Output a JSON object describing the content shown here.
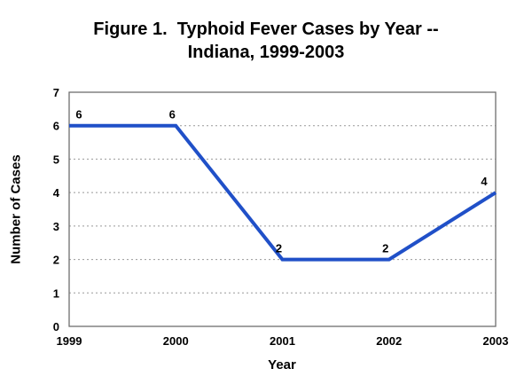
{
  "title": {
    "line1": "Figure 1.  Typhoid Fever Cases by Year --",
    "line2": "Indiana, 1999-2003"
  },
  "chart_data": {
    "type": "line",
    "title": "Figure 1.  Typhoid Fever Cases by Year -- Indiana, 1999-2003",
    "categories": [
      "1999",
      "2000",
      "2001",
      "2002",
      "2003"
    ],
    "series": [
      {
        "name": "Typhoid Fever Cases",
        "values": [
          6,
          6,
          2,
          2,
          4
        ]
      }
    ],
    "data_labels": [
      "6",
      "6",
      "2",
      "2",
      "4"
    ],
    "xlabel": "Year",
    "ylabel": "Number of Cases",
    "ylim": [
      0,
      7
    ],
    "yticks": [
      0,
      1,
      2,
      3,
      4,
      5,
      6,
      7
    ],
    "grid": "horizontal dotted",
    "legend": "none"
  },
  "colors": {
    "line": "#2050C8",
    "grid": "#999999",
    "plot_border": "#6e6e6e",
    "text": "#000000",
    "background": "#ffffff"
  }
}
